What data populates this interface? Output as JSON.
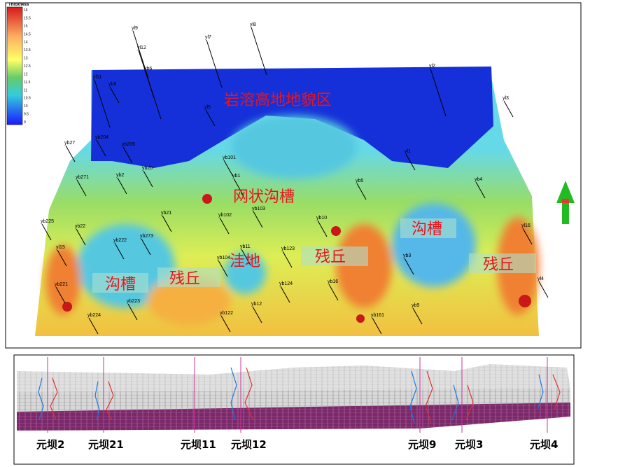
{
  "legend": {
    "title": "Thickness",
    "ticks": [
      16,
      15.5,
      15,
      14.5,
      14,
      13.5,
      13,
      12.5,
      12,
      11.5,
      11,
      10.5,
      10,
      9.5,
      9
    ]
  },
  "regions": [
    "岩溶高地地貌区",
    "网状沟槽",
    "沟槽",
    "沟槽",
    "残丘",
    "残丘",
    "残丘",
    "洼地"
  ],
  "wells": [
    "yl9",
    "yl12",
    "yb6",
    "yl7",
    "yl8",
    "yl2",
    "yl11",
    "yb8",
    "yl3",
    "yl5",
    "yb27",
    "yb204",
    "yb206",
    "yb271",
    "yb2",
    "yb20",
    "yb101",
    "yb1",
    "yb5",
    "yl1",
    "yb4",
    "yb21",
    "yb102",
    "yb103",
    "yb10",
    "yl16",
    "yb225",
    "yb22",
    "yb222",
    "yb273",
    "yl15",
    "yb11",
    "yb123",
    "yb104",
    "yb3",
    "yb221",
    "yb223",
    "yb124",
    "yb16",
    "yl4",
    "yb12",
    "yb122",
    "yb9",
    "yb224",
    "yb161"
  ],
  "section": {
    "wells": [
      "元坝2",
      "元坝21",
      "元坝11",
      "元坝12",
      "元坝9",
      "元坝3",
      "元坝4"
    ]
  }
}
